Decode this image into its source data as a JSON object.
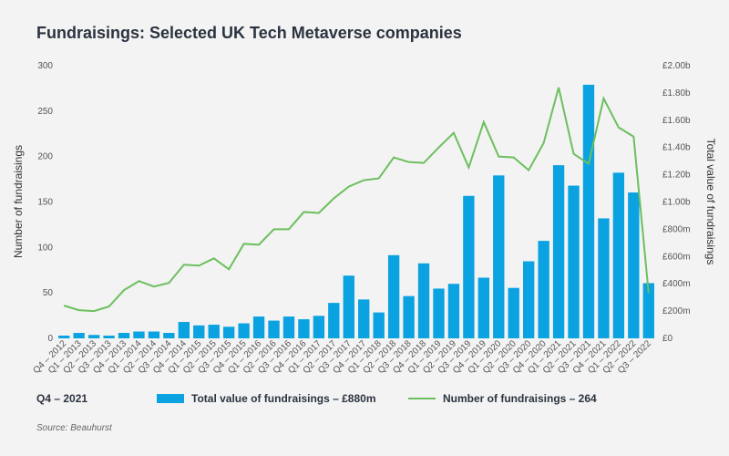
{
  "title": "Fundraisings: Selected UK Tech Metaverse companies",
  "legend": {
    "period": "Q4 – 2021",
    "bar_label": "Total value of fundraisings – £880m",
    "line_label": "Number of fundraisings – 264"
  },
  "source": "Source: Beauhurst",
  "colors": {
    "bar": "#0aa2e0",
    "line": "#6cbf5e",
    "background": "#f3f3f3"
  },
  "chart_data": {
    "type": "bar",
    "title": "Fundraisings: Selected UK Tech Metaverse companies",
    "ylabel": "Number of fundraisings",
    "y2label": "Total value of fundraisings",
    "ylim": [
      0,
      300
    ],
    "y2lim": [
      0,
      2.0
    ],
    "yticks": [
      "0",
      "50",
      "100",
      "150",
      "200",
      "250",
      "300"
    ],
    "y2ticks": [
      "£0",
      "£200m",
      "£400m",
      "£600m",
      "£800m",
      "£1.00b",
      "£1.20b",
      "£1.40b",
      "£1.60b",
      "£1.80b",
      "£2.00b"
    ],
    "grid": false,
    "categories": [
      "Q4 – 2012",
      "Q1 – 2013",
      "Q2 – 2013",
      "Q3 – 2013",
      "Q4 – 2013",
      "Q1 – 2014",
      "Q2 – 2014",
      "Q3 – 2014",
      "Q4 – 2014",
      "Q1 – 2015",
      "Q2 – 2015",
      "Q3 – 2015",
      "Q4 – 2015",
      "Q1 – 2016",
      "Q2 – 2016",
      "Q3 – 2016",
      "Q4 – 2016",
      "Q1 – 2017",
      "Q2 – 2017",
      "Q3 – 2017",
      "Q4 – 2017",
      "Q1 – 2018",
      "Q2 – 2018",
      "Q3 – 2018",
      "Q4 – 2018",
      "Q1 – 2019",
      "Q2 – 2019",
      "Q3 – 2019",
      "Q4 – 2019",
      "Q1 – 2020",
      "Q2 – 2020",
      "Q3 – 2020",
      "Q4 – 2020",
      "Q1 – 2021",
      "Q2 – 2021",
      "Q3 – 2021",
      "Q4 – 2021",
      "Q1 – 2022",
      "Q2 – 2022",
      "Q3 – 2022"
    ],
    "series": [
      {
        "name": "Total value of fundraisings – £880m",
        "type": "bar",
        "axis": "right",
        "values": [
          0.02,
          0.04,
          0.025,
          0.02,
          0.04,
          0.05,
          0.05,
          0.04,
          0.12,
          0.095,
          0.1,
          0.085,
          0.11,
          0.16,
          0.13,
          0.16,
          0.14,
          0.165,
          0.26,
          0.46,
          0.285,
          0.19,
          0.61,
          0.31,
          0.55,
          0.365,
          0.4,
          1.045,
          0.445,
          1.195,
          0.37,
          0.565,
          0.715,
          1.27,
          1.12,
          1.86,
          0.88,
          1.215,
          1.07,
          0.405
        ]
      },
      {
        "name": "Number of fundraisings – 264",
        "type": "line",
        "axis": "left",
        "values": [
          36,
          31,
          30,
          35,
          53,
          63,
          57,
          61,
          81,
          80,
          88,
          76,
          104,
          103,
          120,
          120,
          139,
          138,
          154,
          167,
          174,
          176,
          199,
          194,
          193,
          210,
          226,
          188,
          238,
          200,
          199,
          185,
          215,
          276,
          203,
          192,
          264,
          232,
          222,
          50
        ]
      }
    ]
  }
}
